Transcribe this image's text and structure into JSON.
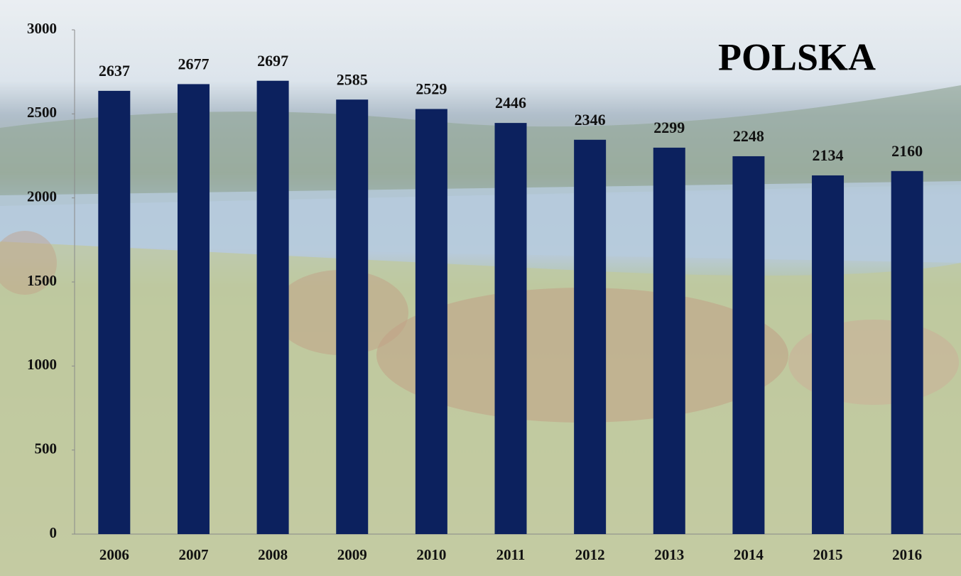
{
  "chart_data": {
    "type": "bar",
    "title": "POLSKA",
    "categories": [
      "2006",
      "2007",
      "2008",
      "2009",
      "2010",
      "2011",
      "2012",
      "2013",
      "2014",
      "2015",
      "2016"
    ],
    "values": [
      2637,
      2677,
      2697,
      2585,
      2529,
      2446,
      2346,
      2299,
      2248,
      2134,
      2160
    ],
    "color": "#0c215e",
    "ylim": [
      0,
      3000
    ],
    "yticks": [
      0,
      500,
      1000,
      1500,
      2000,
      2500,
      3000
    ],
    "grid": false
  }
}
